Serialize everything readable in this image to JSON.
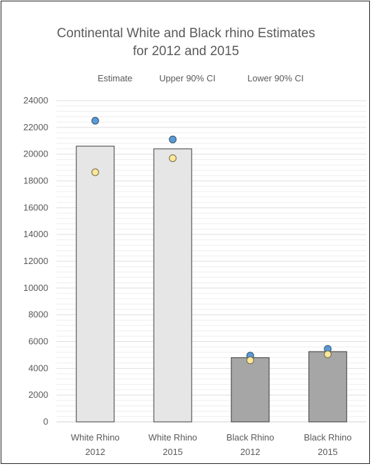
{
  "chart_data": {
    "type": "bar",
    "title_lines": [
      "Continental White and Black rhino Estimates",
      "for 2012 and 2015"
    ],
    "legend": [
      "Estimate",
      "Upper 90% CI",
      "Lower 90% CI"
    ],
    "categories": [
      [
        "White Rhino",
        "2012"
      ],
      [
        "White Rhino",
        "2015"
      ],
      [
        "Black Rhino",
        "2012"
      ],
      [
        "Black Rhino",
        "2015"
      ]
    ],
    "series": [
      {
        "name": "Estimate",
        "kind": "bar",
        "values": [
          20600,
          20400,
          4800,
          5250
        ]
      },
      {
        "name": "Upper 90% CI",
        "kind": "marker",
        "values": [
          22500,
          21100,
          4950,
          5450
        ]
      },
      {
        "name": "Lower 90% CI",
        "kind": "marker",
        "values": [
          18650,
          19700,
          4600,
          5050
        ]
      }
    ],
    "bar_colors": [
      "#e7e6e6",
      "#e7e6e6",
      "#a6a6a6",
      "#a6a6a6"
    ],
    "marker_colors": {
      "upper": "#5b9bd5",
      "lower": "#ffe699"
    },
    "ylim": [
      0,
      24000
    ],
    "y_ticks": [
      0,
      2000,
      4000,
      6000,
      8000,
      10000,
      12000,
      14000,
      16000,
      18000,
      20000,
      22000,
      24000
    ],
    "minor_grid_step": 400,
    "grid": true,
    "legend_position": "top"
  }
}
